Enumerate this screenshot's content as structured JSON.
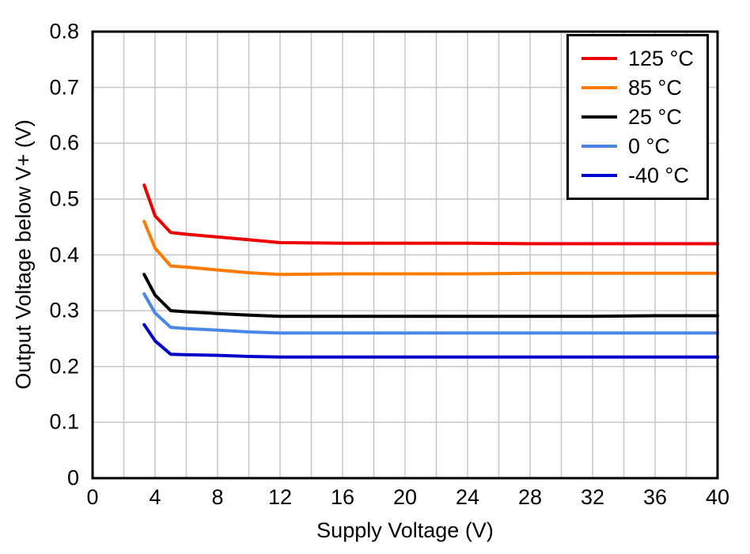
{
  "chart_data": {
    "type": "line",
    "title": "",
    "xlabel": "Supply Voltage (V)",
    "ylabel": "Output Voltage below V+ (V)",
    "xlim": [
      0,
      40
    ],
    "ylim": [
      0,
      0.8
    ],
    "xticks": [
      0,
      4,
      8,
      12,
      16,
      20,
      24,
      28,
      32,
      36,
      40
    ],
    "xticklabels": [
      "0",
      "4",
      "8",
      "12",
      "16",
      "20",
      "24",
      "28",
      "32",
      "36",
      "40"
    ],
    "yticks": [
      0,
      0.1,
      0.2,
      0.3,
      0.4,
      0.5,
      0.6,
      0.7,
      0.8
    ],
    "yticklabels": [
      "0",
      "0.1",
      "0.2",
      "0.3",
      "0.4",
      "0.5",
      "0.6",
      "0.7",
      "0.8"
    ],
    "grid": true,
    "xgrid_step": 2,
    "ygrid_step": 0.1,
    "grid_color": "#c6c6c6",
    "frame_color": "#000000",
    "background": "#ffffff",
    "legend_position": "top-right",
    "x": [
      3.3,
      4,
      5,
      6,
      8,
      10,
      12,
      16,
      20,
      24,
      28,
      32,
      36,
      40
    ],
    "series": [
      {
        "key": "125c",
        "name": "125 °C",
        "color": "#ee0000",
        "values": [
          0.525,
          0.47,
          0.44,
          0.437,
          0.432,
          0.427,
          0.422,
          0.421,
          0.421,
          0.421,
          0.42,
          0.42,
          0.42,
          0.42
        ]
      },
      {
        "key": "85c",
        "name": "85 °C",
        "color": "#ff7a00",
        "values": [
          0.46,
          0.412,
          0.38,
          0.378,
          0.373,
          0.368,
          0.365,
          0.366,
          0.366,
          0.366,
          0.367,
          0.367,
          0.367,
          0.367
        ]
      },
      {
        "key": "25c",
        "name": "25 °C",
        "color": "#000000",
        "values": [
          0.365,
          0.328,
          0.3,
          0.298,
          0.295,
          0.292,
          0.29,
          0.29,
          0.29,
          0.29,
          0.29,
          0.29,
          0.291,
          0.291
        ]
      },
      {
        "key": "0c",
        "name": "0 °C",
        "color": "#4a86e8",
        "values": [
          0.33,
          0.296,
          0.27,
          0.268,
          0.265,
          0.262,
          0.26,
          0.26,
          0.26,
          0.26,
          0.26,
          0.26,
          0.26,
          0.26
        ]
      },
      {
        "key": "n40c",
        "name": "-40 °C",
        "color": "#0000cc",
        "values": [
          0.275,
          0.246,
          0.222,
          0.221,
          0.22,
          0.218,
          0.217,
          0.217,
          0.217,
          0.217,
          0.217,
          0.217,
          0.217,
          0.217
        ]
      }
    ]
  }
}
